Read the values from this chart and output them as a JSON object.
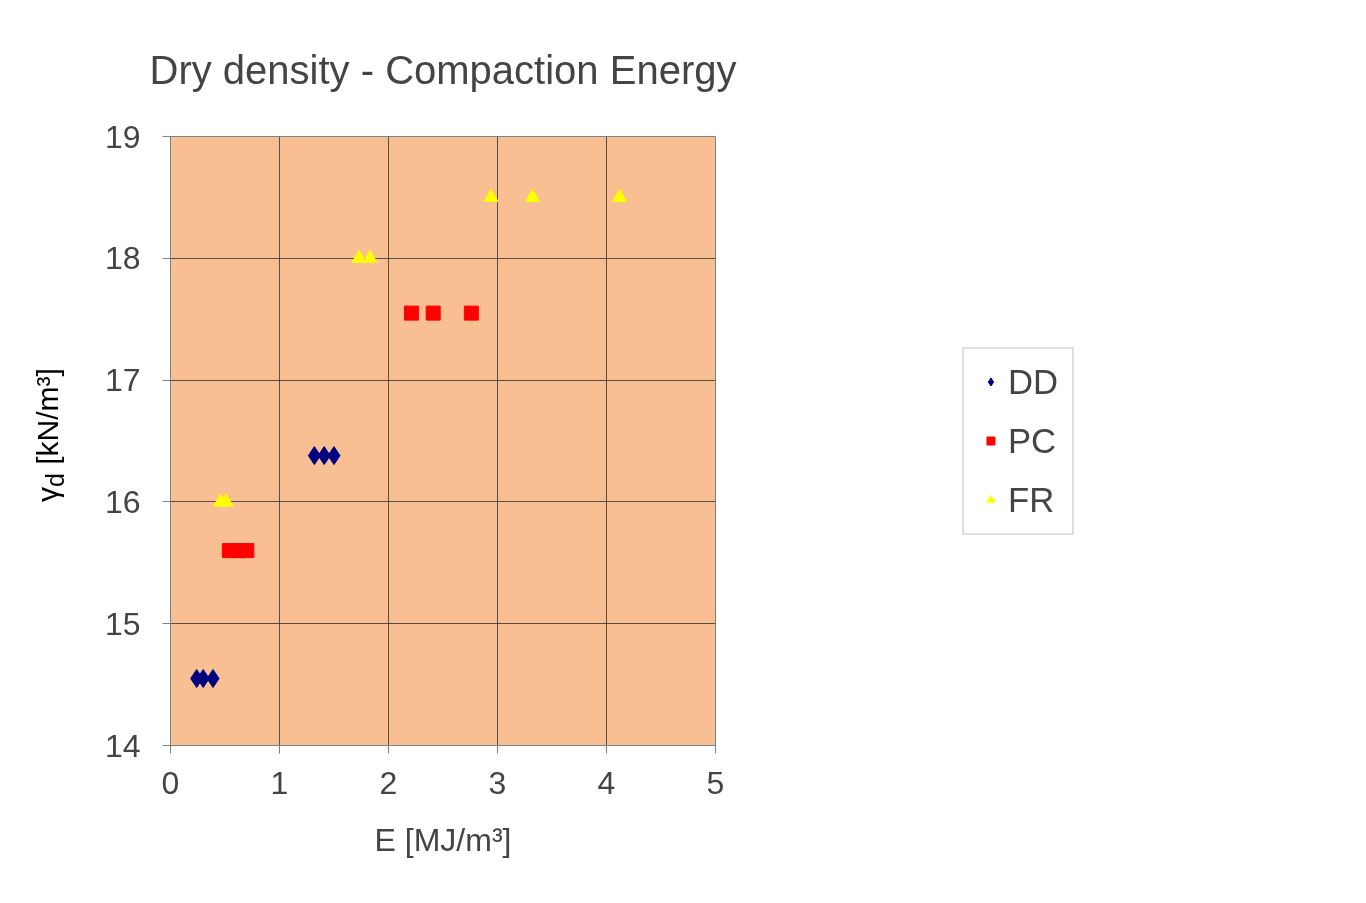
{
  "chart_data": {
    "type": "scatter",
    "title": "Dry density - Compaction Energy",
    "xlabel": "E [MJ/m³]",
    "ylabel": "γ$_{d}$ [kN/m³]",
    "xlim": [
      0,
      5
    ],
    "ylim": [
      14,
      19
    ],
    "xticks": [
      0,
      1,
      2,
      3,
      4,
      5
    ],
    "yticks": [
      14,
      15,
      16,
      17,
      18,
      19
    ],
    "grid": true,
    "legend": "right",
    "series": [
      {
        "name": "DD",
        "color": "#000080",
        "marker": "diamond",
        "x": [
          0.24,
          0.3,
          0.39,
          1.32,
          1.41,
          1.5
        ],
        "values": [
          14.55,
          14.55,
          14.55,
          16.38,
          16.38,
          16.38
        ]
      },
      {
        "name": "PC",
        "color": "#ff0000",
        "marker": "square",
        "x": [
          0.54,
          0.62,
          0.7,
          2.21,
          2.41,
          2.76
        ],
        "values": [
          15.6,
          15.6,
          15.6,
          17.55,
          17.55,
          17.55
        ]
      },
      {
        "name": "FR",
        "color": "#ffff00",
        "marker": "triangle",
        "x": [
          0.46,
          0.51,
          1.73,
          1.83,
          2.94,
          3.32,
          4.12
        ],
        "values": [
          16.0,
          16.0,
          18.0,
          18.0,
          18.5,
          18.5,
          18.5
        ]
      }
    ]
  }
}
